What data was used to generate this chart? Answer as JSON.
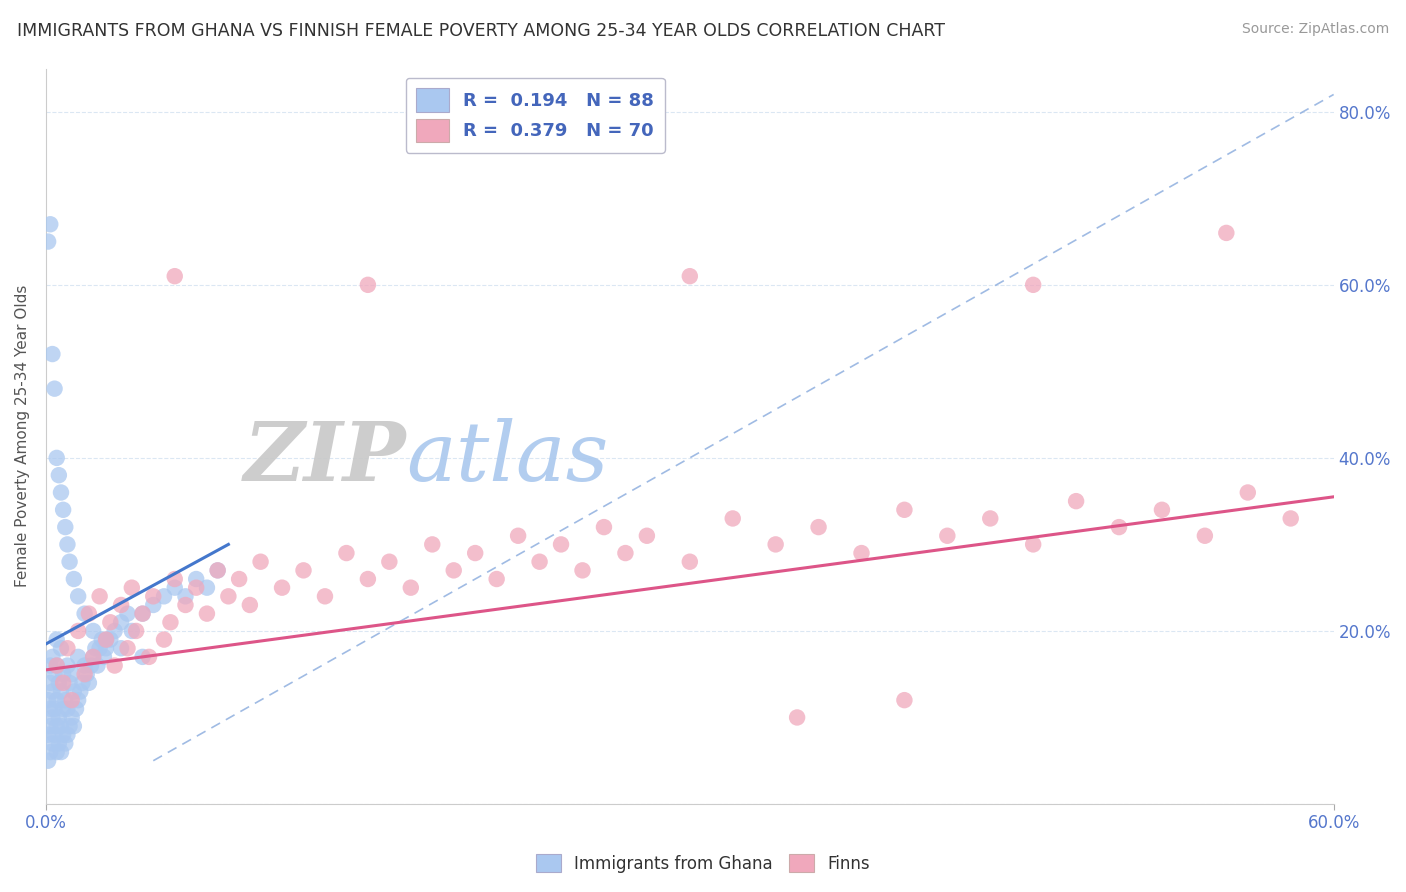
{
  "title": "IMMIGRANTS FROM GHANA VS FINNISH FEMALE POVERTY AMONG 25-34 YEAR OLDS CORRELATION CHART",
  "source": "Source: ZipAtlas.com",
  "ylabel": "Female Poverty Among 25-34 Year Olds",
  "legend_label1": "Immigrants from Ghana",
  "legend_label2": "Finns",
  "blue_color": "#aac8f0",
  "pink_color": "#f0a8bc",
  "blue_trend_color": "#4477cc",
  "pink_trend_color": "#dd5588",
  "dashed_line_color": "#88aadd",
  "watermark_zip": "#cccccc",
  "watermark_atlas": "#aac8f0",
  "x_range": [
    0.0,
    0.6
  ],
  "y_range": [
    0.0,
    0.85
  ],
  "y_ticks": [
    0.0,
    0.2,
    0.4,
    0.6,
    0.8
  ],
  "y_tick_labels": [
    "",
    "20.0%",
    "40.0%",
    "60.0%",
    "80.0%"
  ],
  "blue_trend_x": [
    0.0,
    0.085
  ],
  "blue_trend_y": [
    0.185,
    0.3
  ],
  "pink_trend_x": [
    0.0,
    0.6
  ],
  "pink_trend_y": [
    0.155,
    0.355
  ],
  "diag_trend_x": [
    0.05,
    0.6
  ],
  "diag_trend_y": [
    0.05,
    0.82
  ],
  "blue_x": [
    0.001,
    0.001,
    0.001,
    0.002,
    0.002,
    0.002,
    0.002,
    0.002,
    0.003,
    0.003,
    0.003,
    0.003,
    0.004,
    0.004,
    0.004,
    0.005,
    0.005,
    0.005,
    0.005,
    0.005,
    0.006,
    0.006,
    0.006,
    0.007,
    0.007,
    0.007,
    0.007,
    0.008,
    0.008,
    0.008,
    0.009,
    0.009,
    0.01,
    0.01,
    0.01,
    0.011,
    0.011,
    0.012,
    0.012,
    0.013,
    0.013,
    0.014,
    0.015,
    0.015,
    0.016,
    0.017,
    0.018,
    0.019,
    0.02,
    0.021,
    0.022,
    0.023,
    0.024,
    0.025,
    0.026,
    0.027,
    0.028,
    0.03,
    0.032,
    0.035,
    0.038,
    0.04,
    0.045,
    0.05,
    0.055,
    0.06,
    0.065,
    0.07,
    0.075,
    0.08,
    0.001,
    0.002,
    0.003,
    0.004,
    0.005,
    0.006,
    0.007,
    0.008,
    0.009,
    0.01,
    0.011,
    0.013,
    0.015,
    0.018,
    0.022,
    0.028,
    0.035,
    0.045
  ],
  "blue_y": [
    0.05,
    0.08,
    0.12,
    0.06,
    0.09,
    0.11,
    0.14,
    0.16,
    0.07,
    0.1,
    0.13,
    0.17,
    0.08,
    0.11,
    0.15,
    0.06,
    0.09,
    0.12,
    0.16,
    0.19,
    0.07,
    0.1,
    0.14,
    0.06,
    0.09,
    0.13,
    0.18,
    0.08,
    0.11,
    0.15,
    0.07,
    0.12,
    0.08,
    0.11,
    0.16,
    0.09,
    0.14,
    0.1,
    0.15,
    0.09,
    0.13,
    0.11,
    0.12,
    0.17,
    0.13,
    0.14,
    0.16,
    0.15,
    0.14,
    0.16,
    0.17,
    0.18,
    0.16,
    0.18,
    0.19,
    0.17,
    0.18,
    0.19,
    0.2,
    0.21,
    0.22,
    0.2,
    0.22,
    0.23,
    0.24,
    0.25,
    0.24,
    0.26,
    0.25,
    0.27,
    0.65,
    0.67,
    0.52,
    0.48,
    0.4,
    0.38,
    0.36,
    0.34,
    0.32,
    0.3,
    0.28,
    0.26,
    0.24,
    0.22,
    0.2,
    0.19,
    0.18,
    0.17
  ],
  "pink_x": [
    0.005,
    0.008,
    0.01,
    0.012,
    0.015,
    0.018,
    0.02,
    0.022,
    0.025,
    0.028,
    0.03,
    0.032,
    0.035,
    0.038,
    0.04,
    0.042,
    0.045,
    0.048,
    0.05,
    0.055,
    0.058,
    0.06,
    0.065,
    0.07,
    0.075,
    0.08,
    0.085,
    0.09,
    0.095,
    0.1,
    0.11,
    0.12,
    0.13,
    0.14,
    0.15,
    0.16,
    0.17,
    0.18,
    0.19,
    0.2,
    0.21,
    0.22,
    0.23,
    0.24,
    0.25,
    0.26,
    0.27,
    0.28,
    0.3,
    0.32,
    0.34,
    0.36,
    0.38,
    0.4,
    0.42,
    0.44,
    0.46,
    0.48,
    0.5,
    0.52,
    0.54,
    0.56,
    0.58,
    0.06,
    0.15,
    0.3,
    0.46,
    0.35,
    0.4,
    0.55
  ],
  "pink_y": [
    0.16,
    0.14,
    0.18,
    0.12,
    0.2,
    0.15,
    0.22,
    0.17,
    0.24,
    0.19,
    0.21,
    0.16,
    0.23,
    0.18,
    0.25,
    0.2,
    0.22,
    0.17,
    0.24,
    0.19,
    0.21,
    0.26,
    0.23,
    0.25,
    0.22,
    0.27,
    0.24,
    0.26,
    0.23,
    0.28,
    0.25,
    0.27,
    0.24,
    0.29,
    0.26,
    0.28,
    0.25,
    0.3,
    0.27,
    0.29,
    0.26,
    0.31,
    0.28,
    0.3,
    0.27,
    0.32,
    0.29,
    0.31,
    0.28,
    0.33,
    0.3,
    0.32,
    0.29,
    0.34,
    0.31,
    0.33,
    0.3,
    0.35,
    0.32,
    0.34,
    0.31,
    0.36,
    0.33,
    0.61,
    0.6,
    0.61,
    0.6,
    0.1,
    0.12,
    0.66
  ]
}
